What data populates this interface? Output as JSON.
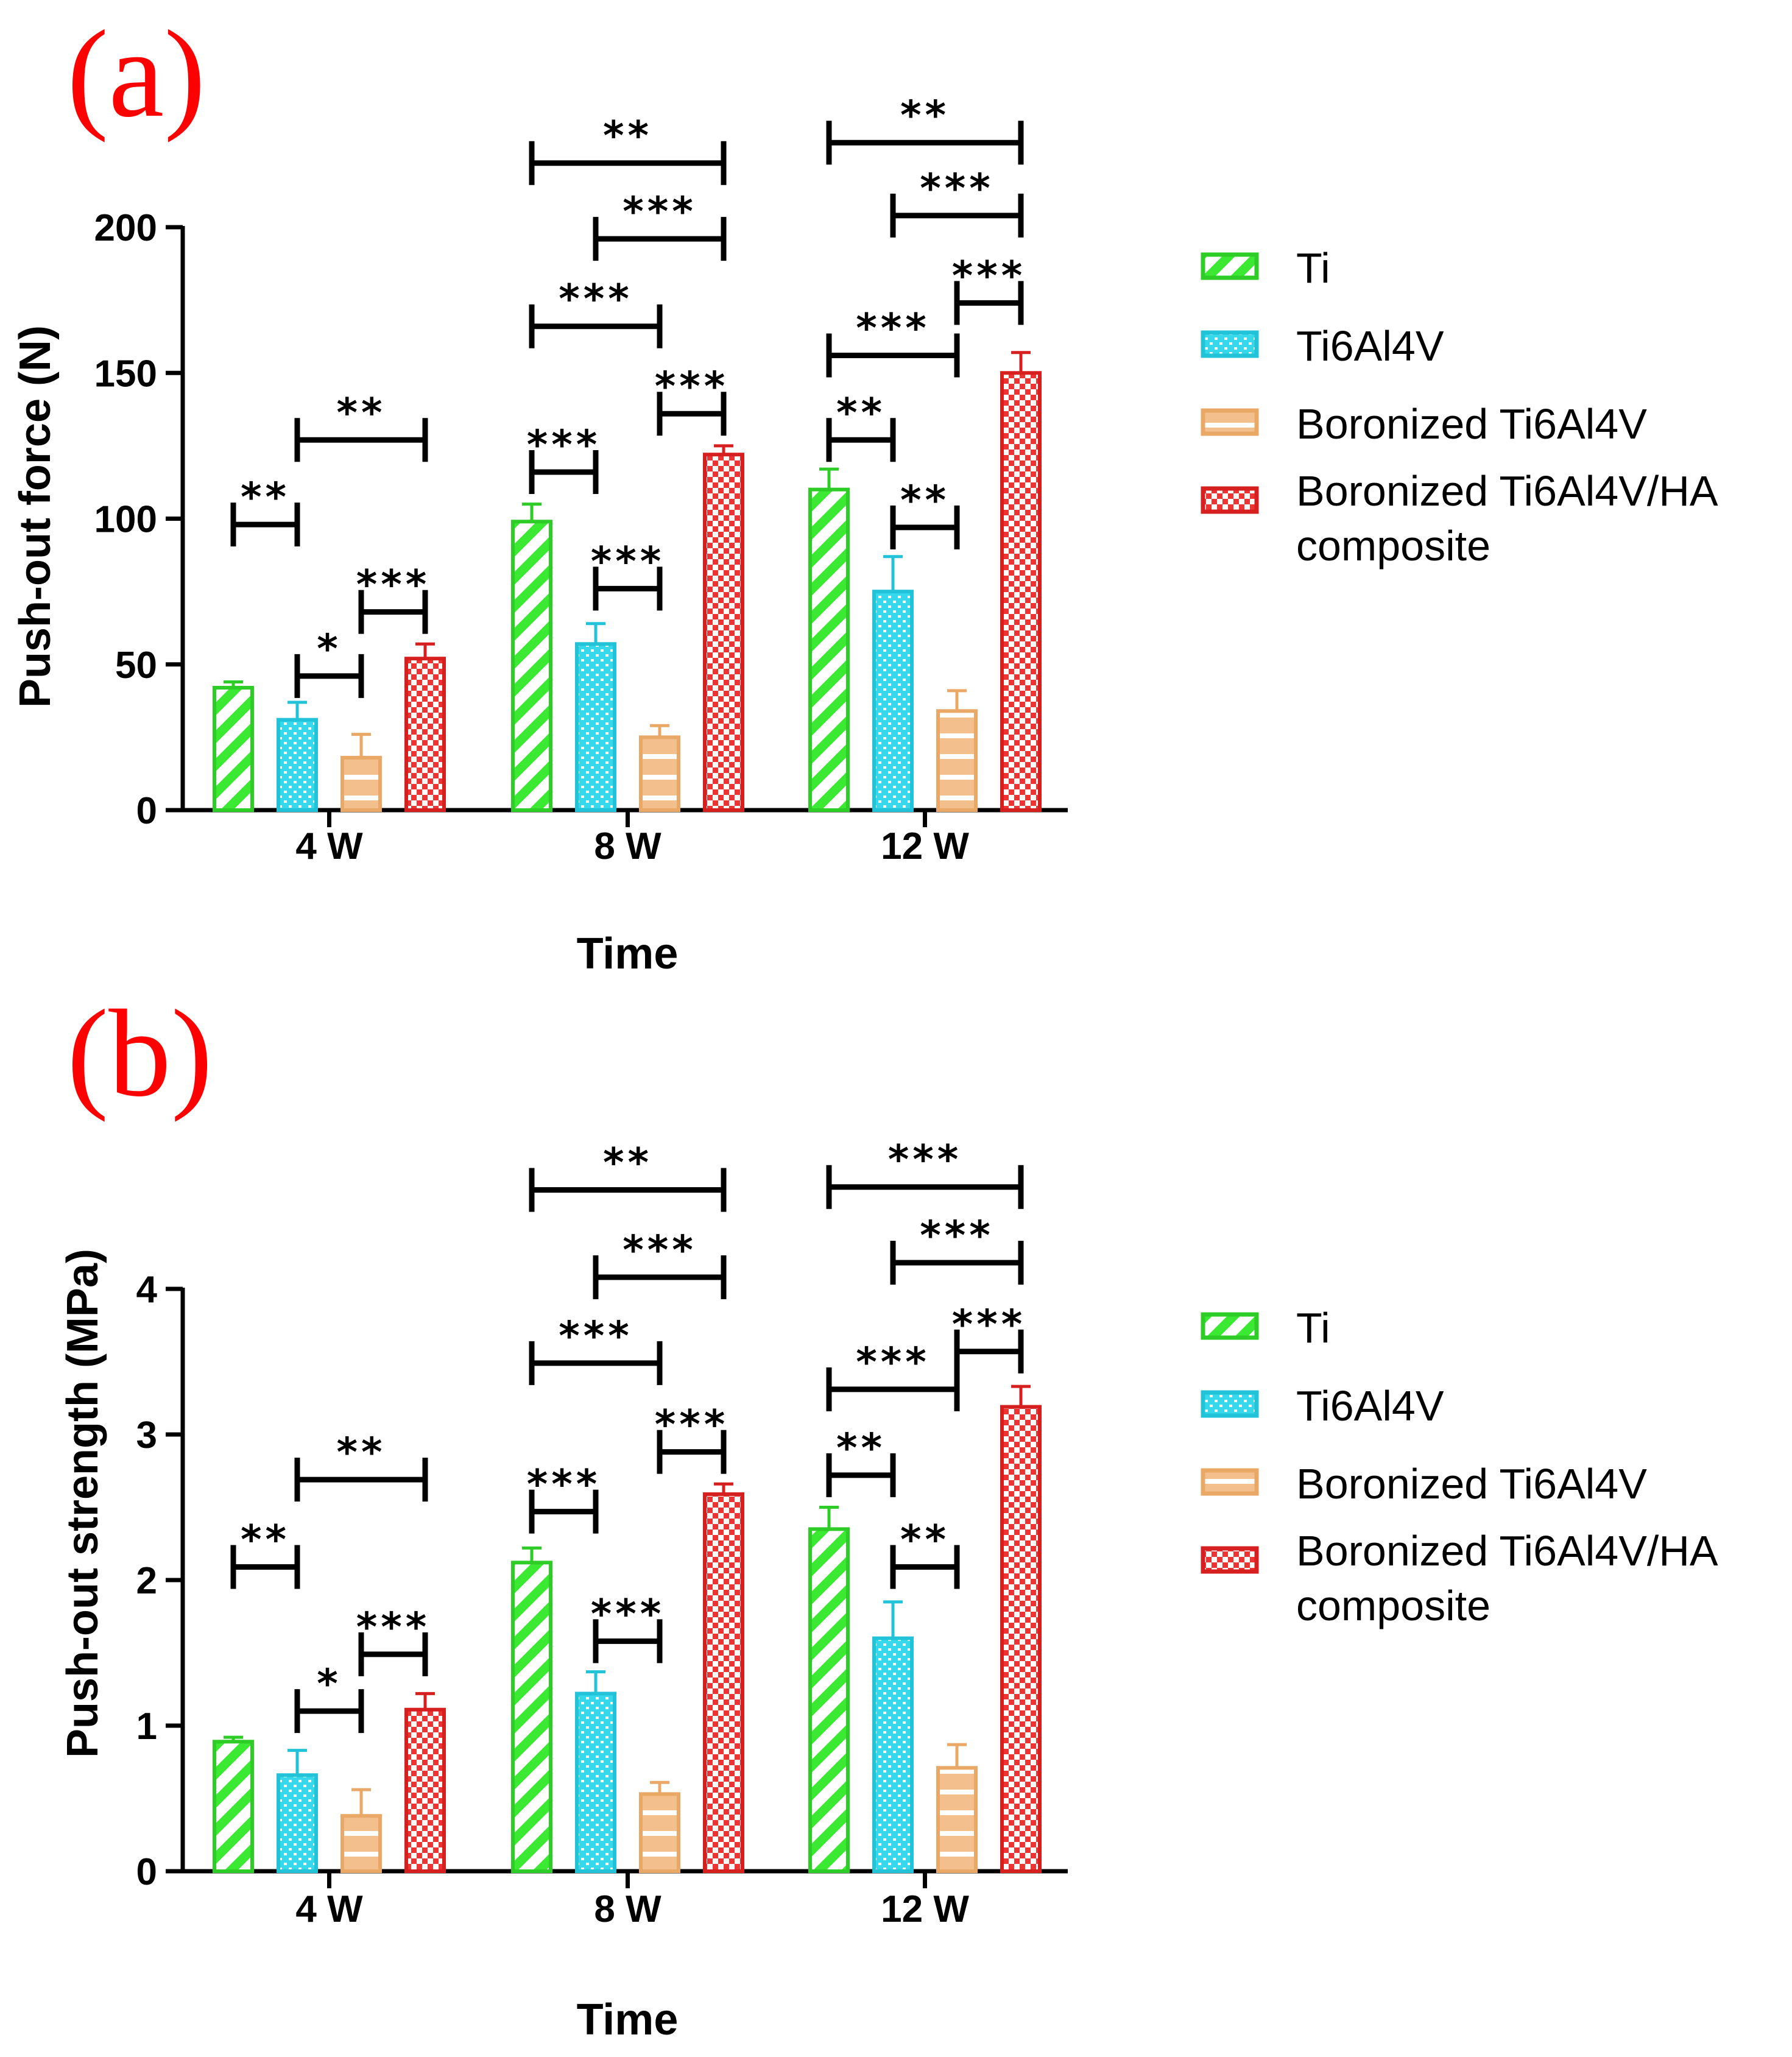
{
  "chart_data": [
    {
      "type": "bar",
      "panel_label": "(a)",
      "title": "",
      "xlabel": "Time",
      "ylabel": "Push-out force (N)",
      "categories": [
        "4 W",
        "8 W",
        "12 W"
      ],
      "ylim": [
        0,
        200
      ],
      "yticks": [
        0,
        50,
        100,
        150,
        200
      ],
      "ytick_labels": [
        "0",
        "50",
        "100",
        "150",
        "200"
      ],
      "series": [
        {
          "name": "Ti",
          "values": [
            42,
            99,
            110
          ],
          "errors": [
            2,
            6,
            7
          ],
          "pattern": "diagonal",
          "fill": "#3be832",
          "stroke": "#2ecc26"
        },
        {
          "name": "Ti6Al4V",
          "values": [
            31,
            57,
            75
          ],
          "errors": [
            6,
            7,
            12
          ],
          "pattern": "dots",
          "fill": "#36d8ec",
          "stroke": "#22c3d8"
        },
        {
          "name": "Boronized Ti6Al4V",
          "values": [
            18,
            25,
            34
          ],
          "errors": [
            8,
            4,
            7
          ],
          "pattern": "horizontal",
          "fill": "#f3bf8c",
          "stroke": "#e9a866"
        },
        {
          "name": "Boronized Ti6Al4V/HA composite",
          "values": [
            52,
            122,
            150
          ],
          "errors": [
            5,
            3,
            7
          ],
          "pattern": "checker",
          "fill": "#ee3333",
          "stroke": "#d62020"
        }
      ],
      "significance": [
        {
          "group": 0,
          "from": 0,
          "to": 1,
          "level": 98,
          "stars": "**"
        },
        {
          "group": 0,
          "from": 1,
          "to": 3,
          "level": 127,
          "stars": "**"
        },
        {
          "group": 0,
          "from": 1,
          "to": 2,
          "level": 46,
          "stars": "*"
        },
        {
          "group": 0,
          "from": 2,
          "to": 3,
          "level": 68,
          "stars": "***"
        },
        {
          "group": 1,
          "from": 0,
          "to": 1,
          "level": 116,
          "stars": "***"
        },
        {
          "group": 1,
          "from": 1,
          "to": 2,
          "level": 76,
          "stars": "***"
        },
        {
          "group": 1,
          "from": 2,
          "to": 3,
          "level": 136,
          "stars": "***"
        },
        {
          "group": 1,
          "from": 0,
          "to": 2,
          "level": 166,
          "stars": "***"
        },
        {
          "group": 1,
          "from": 1,
          "to": 3,
          "level": 196,
          "stars": "***"
        },
        {
          "group": 1,
          "from": 0,
          "to": 3,
          "level": 222,
          "stars": "**"
        },
        {
          "group": 2,
          "from": 0,
          "to": 1,
          "level": 127,
          "stars": "**"
        },
        {
          "group": 2,
          "from": 1,
          "to": 2,
          "level": 97,
          "stars": "**"
        },
        {
          "group": 2,
          "from": 0,
          "to": 2,
          "level": 156,
          "stars": "***"
        },
        {
          "group": 2,
          "from": 2,
          "to": 3,
          "level": 174,
          "stars": "***"
        },
        {
          "group": 2,
          "from": 1,
          "to": 3,
          "level": 204,
          "stars": "***"
        },
        {
          "group": 2,
          "from": 0,
          "to": 3,
          "level": 229,
          "stars": "**"
        }
      ]
    },
    {
      "type": "bar",
      "panel_label": "(b)",
      "title": "",
      "xlabel": "Time",
      "ylabel": "Push-out strength (MPa)",
      "categories": [
        "4 W",
        "8 W",
        "12 W"
      ],
      "ylim": [
        0,
        4
      ],
      "yticks": [
        0,
        1,
        2,
        3,
        4
      ],
      "ytick_labels": [
        "0",
        "1",
        "2",
        "3",
        "4"
      ],
      "series": [
        {
          "name": "Ti",
          "values": [
            0.89,
            2.12,
            2.35
          ],
          "errors": [
            0.03,
            0.1,
            0.15
          ],
          "pattern": "diagonal",
          "fill": "#3be832",
          "stroke": "#2ecc26"
        },
        {
          "name": "Ti6Al4V",
          "values": [
            0.66,
            1.22,
            1.6
          ],
          "errors": [
            0.17,
            0.15,
            0.25
          ],
          "pattern": "dots",
          "fill": "#36d8ec",
          "stroke": "#22c3d8"
        },
        {
          "name": "Boronized Ti6Al4V",
          "values": [
            0.38,
            0.53,
            0.71
          ],
          "errors": [
            0.18,
            0.08,
            0.16
          ],
          "pattern": "horizontal",
          "fill": "#f3bf8c",
          "stroke": "#e9a866"
        },
        {
          "name": "Boronized Ti6Al4V/HA composite",
          "values": [
            1.11,
            2.59,
            3.19
          ],
          "errors": [
            0.11,
            0.07,
            0.14
          ],
          "pattern": "checker",
          "fill": "#ee3333",
          "stroke": "#d62020"
        }
      ],
      "significance": [
        {
          "group": 0,
          "from": 0,
          "to": 1,
          "level": 2.09,
          "stars": "**"
        },
        {
          "group": 0,
          "from": 1,
          "to": 3,
          "level": 2.69,
          "stars": "**"
        },
        {
          "group": 0,
          "from": 1,
          "to": 2,
          "level": 1.1,
          "stars": "*"
        },
        {
          "group": 0,
          "from": 2,
          "to": 3,
          "level": 1.49,
          "stars": "***"
        },
        {
          "group": 1,
          "from": 0,
          "to": 1,
          "level": 2.47,
          "stars": "***"
        },
        {
          "group": 1,
          "from": 1,
          "to": 2,
          "level": 1.58,
          "stars": "***"
        },
        {
          "group": 1,
          "from": 2,
          "to": 3,
          "level": 2.88,
          "stars": "***"
        },
        {
          "group": 1,
          "from": 0,
          "to": 2,
          "level": 3.49,
          "stars": "***"
        },
        {
          "group": 1,
          "from": 1,
          "to": 3,
          "level": 4.08,
          "stars": "***"
        },
        {
          "group": 1,
          "from": 0,
          "to": 3,
          "level": 4.68,
          "stars": "**"
        },
        {
          "group": 2,
          "from": 0,
          "to": 1,
          "level": 2.72,
          "stars": "**"
        },
        {
          "group": 2,
          "from": 1,
          "to": 2,
          "level": 2.09,
          "stars": "**"
        },
        {
          "group": 2,
          "from": 0,
          "to": 2,
          "level": 3.31,
          "stars": "***"
        },
        {
          "group": 2,
          "from": 2,
          "to": 3,
          "level": 3.57,
          "stars": "***"
        },
        {
          "group": 2,
          "from": 1,
          "to": 3,
          "level": 4.18,
          "stars": "***"
        },
        {
          "group": 2,
          "from": 0,
          "to": 3,
          "level": 4.7,
          "stars": "***"
        }
      ]
    }
  ],
  "legend": {
    "items": [
      "Ti",
      "Ti6Al4V",
      "Boronized Ti6Al4V",
      "Boronized Ti6Al4V/HA composite"
    ],
    "label_lines": [
      [
        "Ti"
      ],
      [
        "Ti6Al4V"
      ],
      [
        "Boronized Ti6Al4V"
      ],
      [
        "Boronized Ti6Al4V/HA",
        "composite"
      ]
    ]
  }
}
